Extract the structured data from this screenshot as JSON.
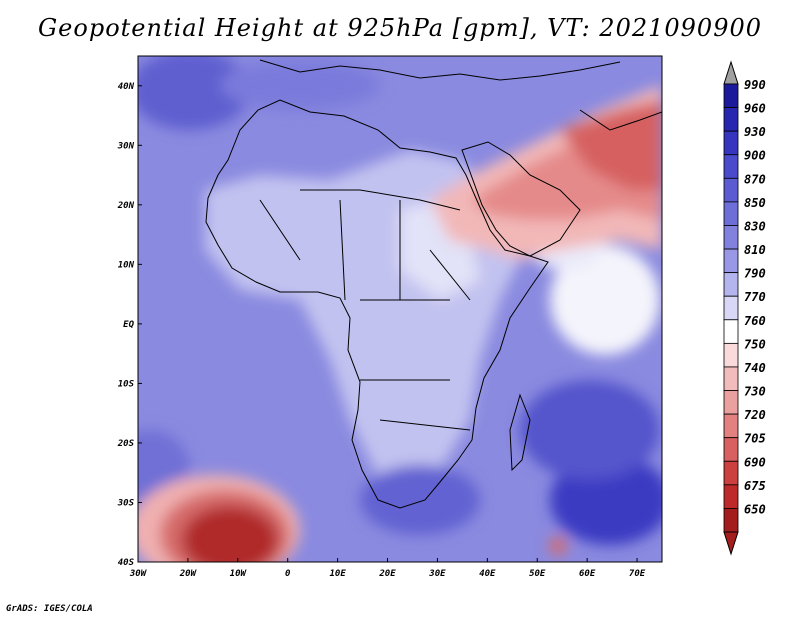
{
  "title": "Geopotential Height at 925hPa [gpm], VT: 2021090900",
  "credit": "GrADS: IGES/COLA",
  "map": {
    "lon_range": [
      -30,
      75
    ],
    "lat_range": [
      -40,
      45
    ],
    "lat_labels": [
      "40N",
      "30N",
      "20N",
      "10N",
      "EQ",
      "10S",
      "20S",
      "30S",
      "40S"
    ],
    "lon_labels": [
      "30W",
      "20W",
      "10W",
      "0",
      "10E",
      "20E",
      "30E",
      "40E",
      "50E",
      "60E",
      "70E"
    ]
  },
  "colorbar": {
    "labels": [
      "990",
      "960",
      "930",
      "900",
      "870",
      "850",
      "830",
      "810",
      "790",
      "770",
      "760",
      "750",
      "740",
      "730",
      "720",
      "705",
      "690",
      "675",
      "650"
    ],
    "colors": [
      "#1a1a9a",
      "#2626b0",
      "#3535c0",
      "#4a4acc",
      "#5c5cd2",
      "#6e6ed8",
      "#8282de",
      "#9898e6",
      "#b4b4ee",
      "#d8d8f6",
      "#ffffff",
      "#fadada",
      "#f2bcbc",
      "#eba0a0",
      "#e38080",
      "#d96060",
      "#cc4040",
      "#be2a2a",
      "#a51e1e"
    ],
    "top_arrow_color": "#a0a0a0",
    "bottom_arrow_color": "#a51e1e"
  }
}
